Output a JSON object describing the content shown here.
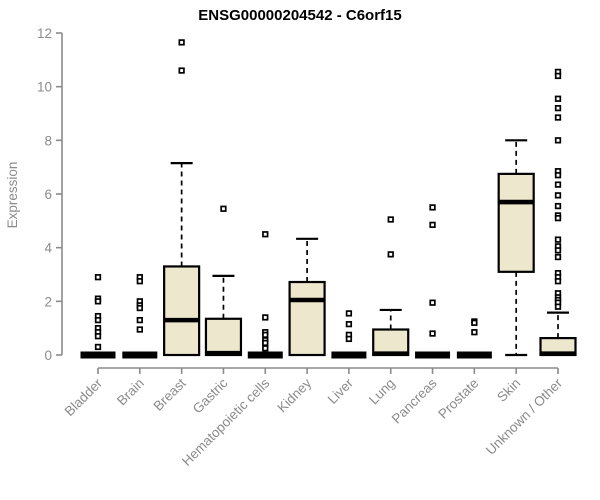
{
  "chart_data": {
    "type": "box",
    "title": "ENSG00000204542 - C6orf15",
    "ylabel": "Expression",
    "xlabel": "",
    "ylim": [
      0,
      12
    ],
    "yticks": [
      0,
      2,
      4,
      6,
      8,
      10,
      12
    ],
    "grid": false,
    "legend": "none",
    "colors": {
      "box_fill": "#EDE7CE",
      "box_line": "#000000",
      "axis": "#8b8b8b",
      "title": "#000000",
      "background": "#ffffff"
    },
    "categories": [
      "Bladder",
      "Brain",
      "Breast",
      "Gastric",
      "Hematopoietic cells",
      "Kidney",
      "Liver",
      "Lung",
      "Pancreas",
      "Prostate",
      "Skin",
      "Unknown / Other"
    ],
    "boxes": [
      {
        "category": "Bladder",
        "whisker_low": 0,
        "q1": 0,
        "median": 0,
        "q3": 0,
        "whisker_high": 0,
        "outliers": [
          2.9,
          2.1,
          2.0,
          1.45,
          1.3,
          1.0,
          0.85,
          0.7,
          0.3
        ]
      },
      {
        "category": "Brain",
        "whisker_low": 0,
        "q1": 0,
        "median": 0,
        "q3": 0,
        "whisker_high": 0,
        "outliers": [
          2.9,
          2.75,
          2.0,
          1.85,
          1.75,
          1.3,
          0.95
        ]
      },
      {
        "category": "Breast",
        "whisker_low": 0,
        "q1": 0,
        "median": 1.3,
        "q3": 3.3,
        "whisker_high": 7.15,
        "outliers": [
          11.65,
          10.6
        ]
      },
      {
        "category": "Gastric",
        "whisker_low": 0,
        "q1": 0,
        "median": 0.07,
        "q3": 1.35,
        "whisker_high": 2.95,
        "outliers": [
          5.45
        ]
      },
      {
        "category": "Hematopoietic cells",
        "whisker_low": 0,
        "q1": 0,
        "median": 0,
        "q3": 0,
        "whisker_high": 0,
        "outliers": [
          4.5,
          1.4,
          0.85,
          0.75,
          0.55,
          0.45,
          0.25
        ]
      },
      {
        "category": "Kidney",
        "whisker_low": 0,
        "q1": 0,
        "median": 2.05,
        "q3": 2.72,
        "whisker_high": 4.33,
        "outliers": []
      },
      {
        "category": "Liver",
        "whisker_low": 0,
        "q1": 0,
        "median": 0,
        "q3": 0,
        "whisker_high": 0,
        "outliers": [
          1.55,
          1.15,
          0.75,
          0.6
        ]
      },
      {
        "category": "Lung",
        "whisker_low": 0,
        "q1": 0,
        "median": 0.05,
        "q3": 0.95,
        "whisker_high": 1.68,
        "outliers": [
          5.05,
          3.75
        ]
      },
      {
        "category": "Pancreas",
        "whisker_low": 0,
        "q1": 0,
        "median": 0,
        "q3": 0,
        "whisker_high": 0,
        "outliers": [
          5.5,
          4.85,
          1.95,
          0.8
        ]
      },
      {
        "category": "Prostate",
        "whisker_low": 0,
        "q1": 0,
        "median": 0,
        "q3": 0,
        "whisker_high": 0,
        "outliers": [
          1.25,
          1.2,
          0.85
        ]
      },
      {
        "category": "Skin",
        "whisker_low": 0,
        "q1": 3.1,
        "median": 5.7,
        "q3": 6.75,
        "whisker_high": 8.0,
        "outliers": []
      },
      {
        "category": "Unknown / Other",
        "whisker_low": 0,
        "q1": 0,
        "median": 0.05,
        "q3": 0.63,
        "whisker_high": 1.58,
        "outliers": [
          10.55,
          10.4,
          9.55,
          9.2,
          8.85,
          8.0,
          6.85,
          6.7,
          6.35,
          5.95,
          5.55,
          5.2,
          5.1,
          4.3,
          4.05,
          3.9,
          3.65,
          3.05,
          2.9,
          2.75,
          2.3,
          2.15,
          2.05,
          1.95,
          1.8
        ]
      }
    ]
  }
}
